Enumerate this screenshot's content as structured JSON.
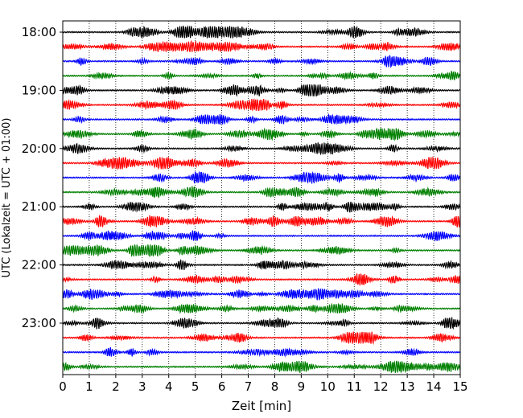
{
  "chart_data": {
    "type": "line",
    "title": "",
    "xlabel": "Zeit  [min]",
    "ylabel": "UTC (Lokalzeit = UTC + 01:00)",
    "xlim": [
      0,
      15
    ],
    "x_ticks": [
      "0",
      "1",
      "2",
      "3",
      "4",
      "5",
      "6",
      "7",
      "8",
      "9",
      "10",
      "11",
      "12",
      "13",
      "14",
      "15"
    ],
    "y_ticks": [
      "18:00",
      "19:00",
      "20:00",
      "21:00",
      "22:00",
      "23:00"
    ],
    "grid": "vertical dotted",
    "trace_colors": [
      "#000000",
      "#ff0000",
      "#0000ff",
      "#008000"
    ],
    "trace_start_times": [
      "18:00",
      "18:15",
      "18:30",
      "18:45",
      "19:00",
      "19:15",
      "19:30",
      "19:45",
      "20:00",
      "20:15",
      "20:30",
      "20:45",
      "21:00",
      "21:15",
      "21:30",
      "21:45",
      "22:00",
      "22:15",
      "22:30",
      "22:45",
      "23:00",
      "23:15",
      "23:30",
      "23:45"
    ],
    "trace_minutes": 15
  }
}
